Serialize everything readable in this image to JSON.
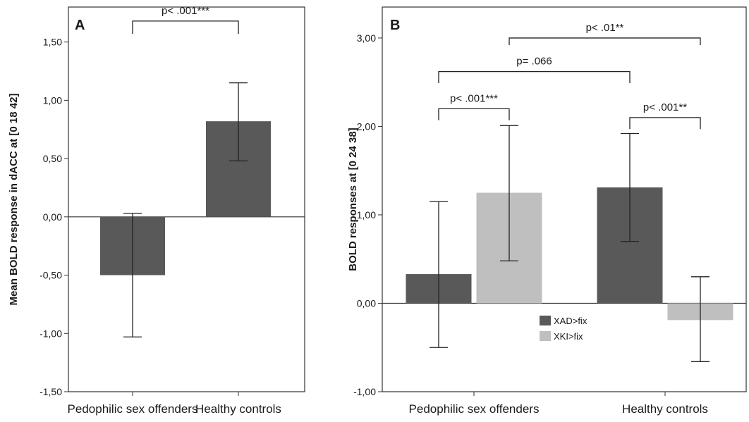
{
  "chart_data": [
    {
      "panel": "A",
      "type": "bar",
      "ylabel": "Mean BOLD response in dACC at [0 18 42]",
      "xlabel": "",
      "categories": [
        "Pedophilic sex offenders",
        "Healthy controls"
      ],
      "series": [
        {
          "values": [
            -0.5,
            0.82
          ],
          "error_low": [
            -1.03,
            0.48
          ],
          "error_high": [
            0.03,
            1.15
          ],
          "color": "#595959"
        }
      ],
      "ylim": [
        -1.5,
        1.8
      ],
      "yticks": [
        -1.5,
        -1.0,
        -0.5,
        0.0,
        0.5,
        1.0,
        1.5
      ],
      "ytick_labels": [
        "-1,50",
        "-1,00",
        "-0,50",
        "0,00",
        "0,50",
        "1,00",
        "1,50"
      ],
      "annotations": [
        {
          "text": "p< .001***",
          "from": "Pedophilic sex offenders",
          "to": "Healthy controls"
        }
      ],
      "grid": false
    },
    {
      "panel": "B",
      "type": "bar",
      "ylabel": "BOLD responses at [0 24 38]",
      "xlabel": "",
      "categories": [
        "Pedophilic sex offenders",
        "Healthy controls"
      ],
      "series": [
        {
          "name": "XAD>fix",
          "values": [
            0.33,
            1.31
          ],
          "error_low": [
            -0.5,
            0.7
          ],
          "error_high": [
            1.15,
            1.92
          ],
          "color": "#595959"
        },
        {
          "name": "XKI>fix",
          "values": [
            1.25,
            -0.19
          ],
          "error_low": [
            0.48,
            -0.66
          ],
          "error_high": [
            2.01,
            0.3
          ],
          "color": "#bfbfbf"
        }
      ],
      "ylim": [
        -1.0,
        3.35
      ],
      "yticks": [
        -1.0,
        0.0,
        1.0,
        2.0,
        3.0
      ],
      "ytick_labels": [
        "-1,00",
        "0,00",
        "1,00",
        "2,00",
        "3,00"
      ],
      "legend_position": "center",
      "annotations": [
        {
          "text": "p< .01**",
          "from": "Pedophilic sex offenders XKI>fix",
          "to": "Healthy controls XKI>fix"
        },
        {
          "text": "p= .066",
          "from": "Pedophilic sex offenders XAD>fix",
          "to": "Healthy controls XAD>fix"
        },
        {
          "text": "p< .001***",
          "from": "Pedophilic sex offenders XAD>fix",
          "to": "Pedophilic sex offenders XKI>fix"
        },
        {
          "text": "p< .001**",
          "from": "Healthy controls XAD>fix",
          "to": "Healthy controls XKI>fix"
        }
      ],
      "grid": false
    }
  ]
}
